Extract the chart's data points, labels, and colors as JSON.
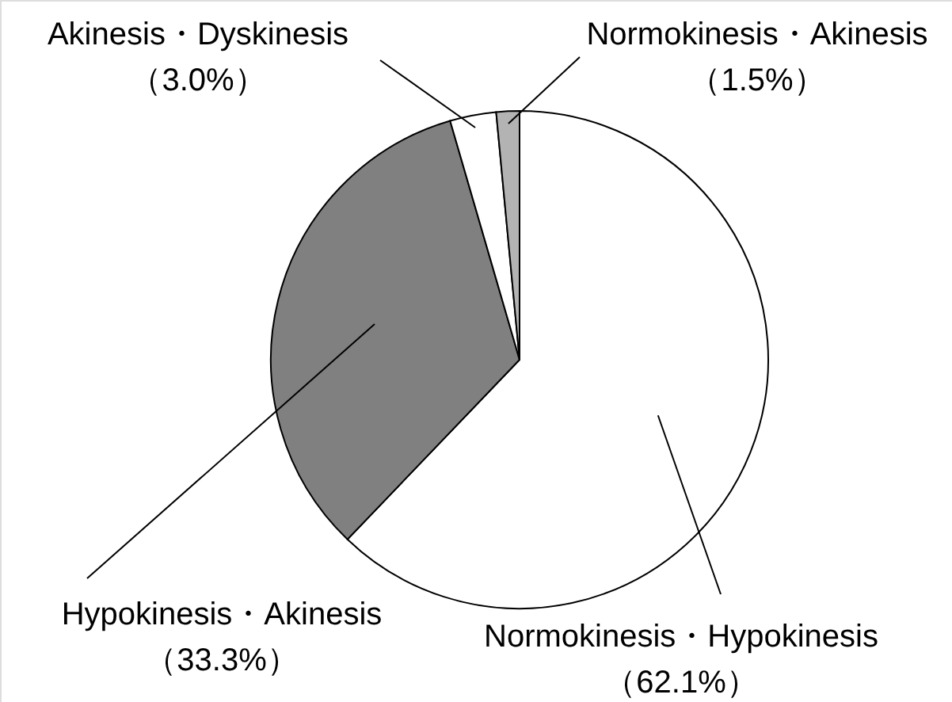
{
  "chart_data": {
    "type": "pie",
    "categories": [
      "Normokinesis・Hypokinesis",
      "Hypokinesis・Akinesis",
      "Akinesis・Dyskinesis",
      "Normokinesis・Akinesis"
    ],
    "values": [
      62.1,
      33.3,
      3.0,
      1.5
    ],
    "value_labels": [
      "（62.1%）",
      "（33.3%）",
      "（3.0%）",
      "（1.5%）"
    ],
    "colors": [
      "#ffffff",
      "#808080",
      "#ffffff",
      "#b3b3b3"
    ]
  }
}
